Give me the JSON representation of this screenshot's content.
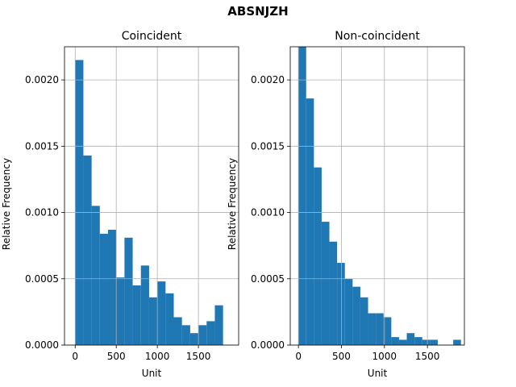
{
  "figure": {
    "suptitle": "ABSNJZH"
  },
  "chart_data": [
    {
      "type": "bar",
      "title": "Coincident",
      "xlabel": "Unit",
      "ylabel": "Relative Frequency",
      "xlim": [
        -130,
        1990
      ],
      "ylim": [
        0,
        0.00225
      ],
      "xticks": [
        0,
        500,
        1000,
        1500
      ],
      "yticks": [
        0.0,
        0.0005,
        0.001,
        0.0015,
        0.002
      ],
      "ytick_labels": [
        "0.0000",
        "0.0005",
        "0.0010",
        "0.0015",
        "0.0020"
      ],
      "grid": true,
      "color": "#1f77b4",
      "bin_width": 100,
      "bin_starts": [
        0,
        100,
        200,
        300,
        400,
        500,
        600,
        700,
        800,
        900,
        1000,
        1100,
        1200,
        1300,
        1400,
        1500,
        1600,
        1700
      ],
      "values": [
        0.00215,
        0.00143,
        0.00105,
        0.00084,
        0.00087,
        0.00051,
        0.00081,
        0.00045,
        0.0006,
        0.00036,
        0.00048,
        0.00039,
        0.00021,
        0.00015,
        9e-05,
        0.00015,
        0.00018,
        0.0003
      ]
    },
    {
      "type": "bar",
      "title": "Non-coincident",
      "xlabel": "Unit",
      "ylabel": "Relative Frequency",
      "xlim": [
        -95,
        1930
      ],
      "ylim": [
        0,
        0.00225
      ],
      "xticks": [
        0,
        500,
        1000,
        1500
      ],
      "yticks": [
        0.0,
        0.0005,
        0.001,
        0.0015,
        0.002
      ],
      "ytick_labels": [
        "0.0000",
        "0.0005",
        "0.0010",
        "0.0015",
        "0.0020"
      ],
      "grid": true,
      "color": "#1f77b4",
      "bin_width": 90,
      "bin_starts": [
        0,
        90,
        180,
        270,
        360,
        450,
        540,
        630,
        720,
        810,
        900,
        990,
        1080,
        1170,
        1260,
        1350,
        1440,
        1530,
        1620,
        1710,
        1800
      ],
      "values": [
        0.00228,
        0.00186,
        0.00134,
        0.00093,
        0.00078,
        0.00062,
        0.0005,
        0.00044,
        0.00036,
        0.00024,
        0.00024,
        0.00021,
        6e-05,
        4e-05,
        9e-05,
        6e-05,
        4e-05,
        4e-05,
        0.0,
        0.0,
        4e-05
      ]
    }
  ]
}
